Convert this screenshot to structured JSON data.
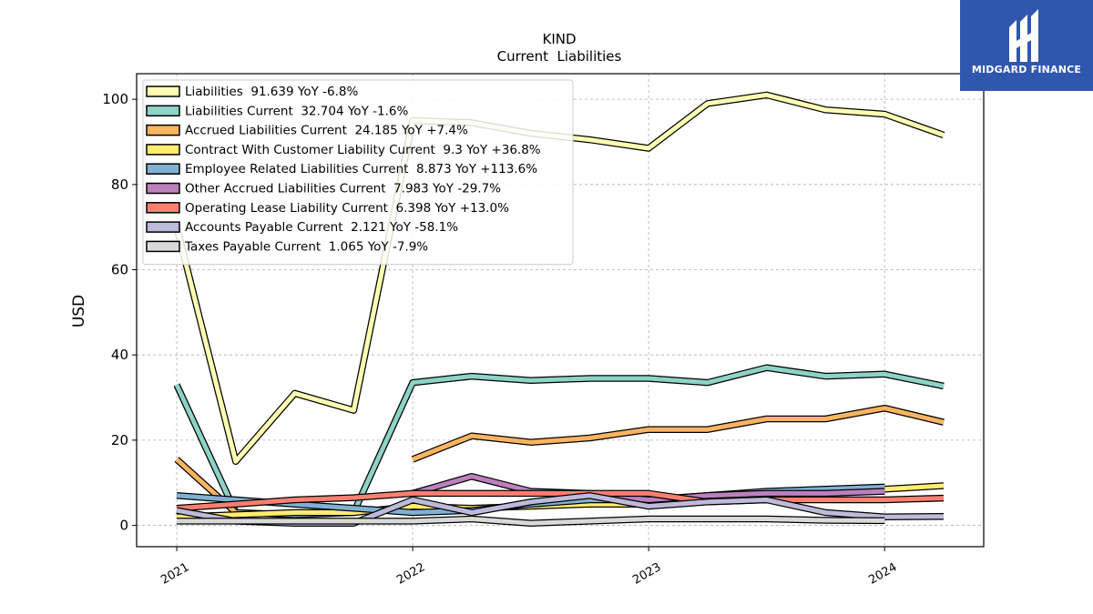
{
  "brand": {
    "name": "MIDGARD FINANCE",
    "bg": "#2f57b0"
  },
  "chart_data": {
    "type": "line",
    "title": "KIND",
    "subtitle": "Current  Liabilities",
    "ylabel": "USD",
    "xlabel": "",
    "ylim": [
      -5,
      106
    ],
    "xlim": [
      2020.83,
      2024.42
    ],
    "yticks": [
      0,
      20,
      40,
      60,
      80,
      100
    ],
    "xticks": [
      2021,
      2022,
      2023,
      2024
    ],
    "grid": true,
    "legend_position": "top-left",
    "x": [
      2021.0,
      2021.25,
      2021.5,
      2021.75,
      2022.0,
      2022.25,
      2022.5,
      2022.75,
      2023.0,
      2023.25,
      2023.5,
      2023.75,
      2024.0,
      2024.25
    ],
    "series": [
      {
        "name": "Liabilities",
        "legend": "Liabilities  91.639 YoY -6.8%",
        "color": "#ffffb3",
        "values": [
          70,
          15,
          31,
          27,
          95,
          94.5,
          92,
          90.5,
          88.5,
          99,
          101,
          97.5,
          96.5,
          91.6
        ]
      },
      {
        "name": "Liabilities Current",
        "legend": "Liabilities Current  32.704 YoY -1.6%",
        "color": "#8dd3c7",
        "values": [
          33,
          3,
          2.5,
          3,
          33.5,
          35,
          34,
          34.5,
          34.5,
          33.5,
          37,
          35,
          35.5,
          32.7
        ]
      },
      {
        "name": "Accrued Liabilities Current",
        "legend": "Accrued Liabilities Current  24.185 YoY +7.4%",
        "color": "#fdb462",
        "values": [
          15.5,
          3,
          null,
          null,
          15.5,
          21,
          19.5,
          20.5,
          22.5,
          22.5,
          25,
          25,
          27.5,
          24.2
        ]
      },
      {
        "name": "Contract With Customer Liability Current",
        "legend": "Contract With Customer Liability Current  9.3 YoY +36.8%",
        "color": "#ffed6f",
        "values": [
          2,
          2.5,
          3,
          3,
          4.5,
          4,
          4.5,
          5,
          5,
          6,
          7,
          8,
          8.5,
          9.3
        ]
      },
      {
        "name": "Employee Related Liabilities Current",
        "legend": "Employee Related Liabilities Current  8.873 YoY +113.6%",
        "color": "#80b1d3",
        "values": [
          7,
          6,
          5,
          4,
          3,
          3.5,
          5,
          6,
          6,
          7,
          8,
          8.5,
          9,
          null
        ]
      },
      {
        "name": "Other Accrued Liabilities Current",
        "legend": "Other Accrued Liabilities Current  7.983 YoY -29.7%",
        "color": "#bc80bd",
        "values": [
          null,
          null,
          null,
          null,
          7.5,
          11.5,
          8,
          7.5,
          6,
          7,
          7.5,
          7.5,
          8,
          null
        ]
      },
      {
        "name": "Operating Lease Liability Current",
        "legend": "Operating Lease Liability Current  6.398 YoY +13.0%",
        "color": "#fb8072",
        "values": [
          4,
          5,
          6,
          6.5,
          7.5,
          7.5,
          7.5,
          7.5,
          7.5,
          5.5,
          6,
          6,
          6,
          6.4
        ]
      },
      {
        "name": "Accounts Payable Current",
        "legend": "Accounts Payable Current  2.121 YoY -58.1%",
        "color": "#bebada",
        "values": [
          3.5,
          1,
          0.5,
          0.5,
          6,
          3,
          5.5,
          7,
          4.5,
          5.5,
          6,
          3,
          2,
          2.1
        ]
      },
      {
        "name": "Taxes Payable Current",
        "legend": "Taxes Payable Current  1.065 YoY -7.9%",
        "color": "#d9d9d9",
        "values": [
          1,
          1,
          1,
          1,
          1,
          1.5,
          0.5,
          1,
          1.5,
          1.5,
          1.5,
          1.2,
          1.1,
          null
        ]
      }
    ]
  }
}
